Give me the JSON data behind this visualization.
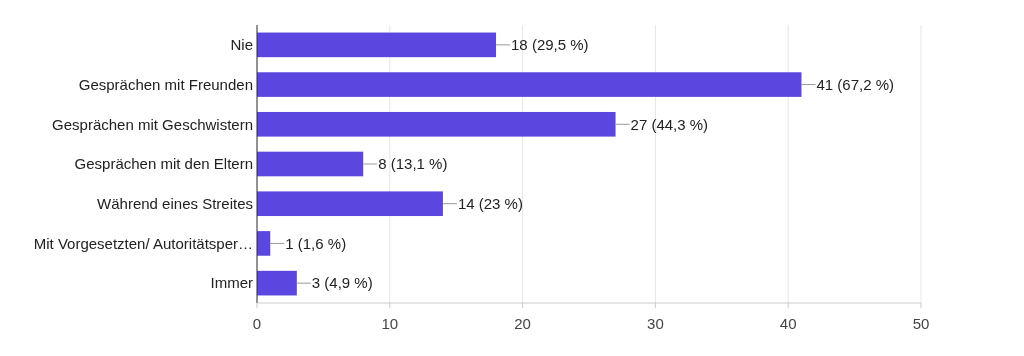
{
  "chart_data": {
    "type": "bar",
    "orientation": "horizontal",
    "categories": [
      "Nie",
      "Gesprächen mit Freunden",
      "Gesprächen mit Geschwistern",
      "Gesprächen mit den Eltern",
      "Während eines Streites",
      "Mit Vorgesetzten/ Autoritätsper…",
      "Immer"
    ],
    "values": [
      18,
      41,
      27,
      8,
      14,
      1,
      3
    ],
    "value_labels": [
      "18 (29,5 %)",
      "41 (67,2 %)",
      "27 (44,3 %)",
      "8 (13,1 %)",
      "14 (23 %)",
      "1 (1,6 %)",
      "3 (4,9 %)"
    ],
    "color": "#5b47e0",
    "xlim": [
      0,
      50
    ],
    "xticks": [
      0,
      10,
      20,
      30,
      40,
      50
    ],
    "grid": "x"
  }
}
